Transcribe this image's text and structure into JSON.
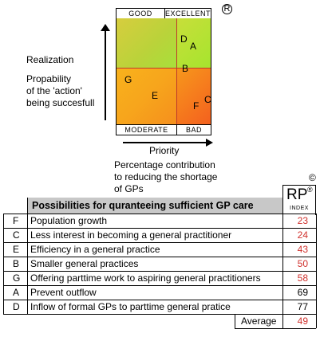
{
  "matrix": {
    "top_labels": [
      "GOOD",
      "EXCELLENT"
    ],
    "bottom_labels": [
      "MODERATE",
      "BAD"
    ],
    "points": [
      {
        "letter": "D"
      },
      {
        "letter": "A"
      },
      {
        "letter": "B"
      },
      {
        "letter": "G"
      },
      {
        "letter": "E"
      },
      {
        "letter": "C"
      },
      {
        "letter": "F"
      }
    ],
    "registered_mark": "R"
  },
  "y_axis": {
    "title": "Realization",
    "subtitle_lines": [
      "Propability",
      "of the 'action'",
      "being succesfull"
    ]
  },
  "x_axis": {
    "title": "Priority",
    "subtitle_lines": [
      "Percentage contribution",
      "to reducing the shortage",
      "of GPs"
    ]
  },
  "copyright_mark": "©",
  "rp_index": {
    "big": "RP",
    "small": "INDEX",
    "mark": "®"
  },
  "table": {
    "header": "Possibilities for quranteeing sufficient GP care",
    "rows": [
      {
        "letter": "F",
        "text": "Population growth",
        "index": "23",
        "color": "#d0312d"
      },
      {
        "letter": "C",
        "text": "Less interest in becoming a general practitioner",
        "index": "24",
        "color": "#d0312d"
      },
      {
        "letter": "E",
        "text": "Efficiency in a general practice",
        "index": "43",
        "color": "#d0312d"
      },
      {
        "letter": "B",
        "text": "Smaller general practices",
        "index": "50",
        "color": "#d0312d"
      },
      {
        "letter": "G",
        "text": "Offering parttime work to aspiring general practitioners",
        "index": "58",
        "color": "#d0312d"
      },
      {
        "letter": "A",
        "text": "Prevent outflow",
        "index": "69",
        "color": "#000000"
      },
      {
        "letter": "D",
        "text": "Inflow of formal GPs to parttime general pratice",
        "index": "77",
        "color": "#000000"
      }
    ],
    "average_label": "Average",
    "average_value": "49",
    "average_color": "#d0312d"
  }
}
